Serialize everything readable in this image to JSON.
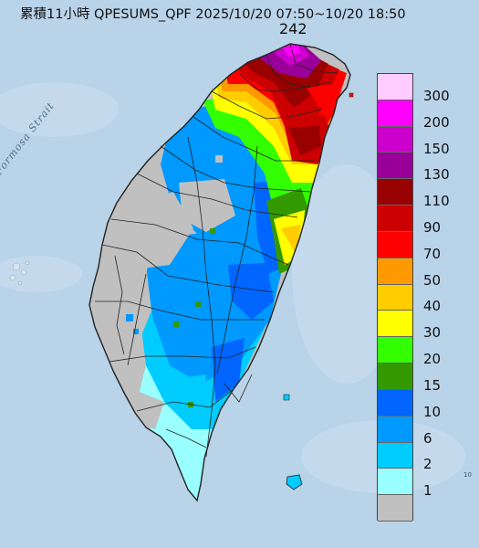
{
  "title": "累積11小時 QPESUMS_QPF 2025/10/20 07:50~10/20 18:50",
  "max_value": "242",
  "water_label": "Formosa Strait",
  "edge_number": "10",
  "legend": {
    "items": [
      {
        "label": "300",
        "color": "#ffccff"
      },
      {
        "label": "200",
        "color": "#ff00ff"
      },
      {
        "label": "150",
        "color": "#cc00cc"
      },
      {
        "label": "130",
        "color": "#990099"
      },
      {
        "label": "110",
        "color": "#990000"
      },
      {
        "label": "90",
        "color": "#cc0000"
      },
      {
        "label": "70",
        "color": "#ff0000"
      },
      {
        "label": "50",
        "color": "#ff9900"
      },
      {
        "label": "40",
        "color": "#ffcc00"
      },
      {
        "label": "30",
        "color": "#ffff00"
      },
      {
        "label": "20",
        "color": "#33ff00"
      },
      {
        "label": "15",
        "color": "#339900"
      },
      {
        "label": "10",
        "color": "#0066ff"
      },
      {
        "label": "6",
        "color": "#0099ff"
      },
      {
        "label": "2",
        "color": "#00ccff"
      },
      {
        "label": "1",
        "color": "#99ffff"
      },
      {
        "label": "",
        "color": "#c0c0c0"
      }
    ]
  },
  "colors": {
    "sea": "#b9d3e8",
    "no_rain": "#c0c0c0",
    "border": "#222222"
  }
}
